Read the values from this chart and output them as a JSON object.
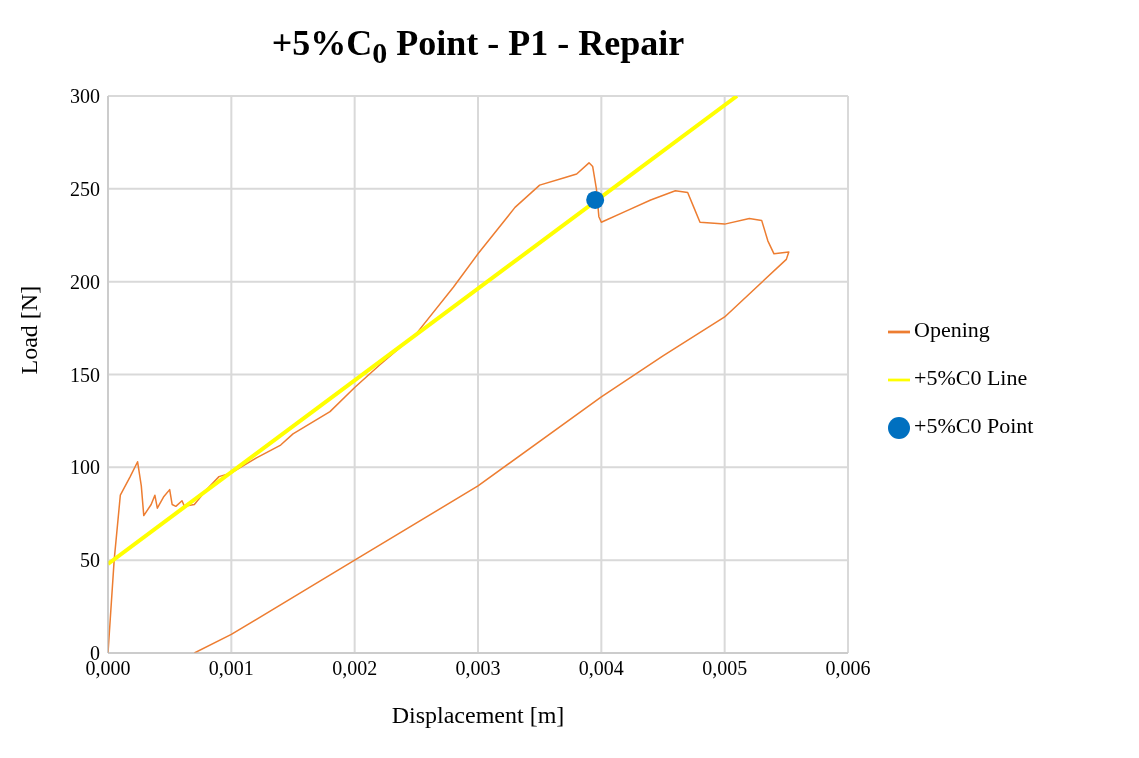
{
  "chart_data": {
    "type": "line",
    "title": "+5%C$_{0}$ Point - P1 - Repair",
    "xlabel": "Displacement [m]",
    "ylabel": "Load [N]",
    "xlim": [
      0,
      0.006
    ],
    "ylim": [
      0,
      300
    ],
    "xticks": [
      {
        "value": 0,
        "label": "0,000"
      },
      {
        "value": 0.001,
        "label": "0,001"
      },
      {
        "value": 0.002,
        "label": "0,002"
      },
      {
        "value": 0.003,
        "label": "0,003"
      },
      {
        "value": 0.004,
        "label": "0,004"
      },
      {
        "value": 0.005,
        "label": "0,005"
      },
      {
        "value": 0.006,
        "label": "0,006"
      }
    ],
    "yticks": [
      0,
      50,
      100,
      150,
      200,
      250,
      300
    ],
    "grid": true,
    "legend": "right",
    "series": [
      {
        "name": "Opening",
        "marker": "none",
        "color": "#ed7d31",
        "x": [
          0,
          5e-05,
          0.0001,
          0.00018,
          0.00024,
          0.00027,
          0.00029,
          0.00035,
          0.00038,
          0.0004,
          0.00045,
          0.0005,
          0.00052,
          0.00055,
          0.0006,
          0.00062,
          0.0007,
          0.0008,
          0.0009,
          0.001,
          0.0012,
          0.0014,
          0.0015,
          0.0018,
          0.002,
          0.0022,
          0.0025,
          0.0028,
          0.003,
          0.0033,
          0.0035,
          0.0037,
          0.0038,
          0.0039,
          0.00393,
          0.00396,
          0.00398,
          0.004,
          0.0042,
          0.0044,
          0.0046,
          0.0047,
          0.00475,
          0.0048,
          0.005,
          0.0052,
          0.0053,
          0.00535,
          0.0054,
          0.00552,
          0.0055,
          0.005,
          0.0045,
          0.004,
          0.003,
          0.002,
          0.001,
          0.0007
        ],
        "values": [
          0,
          50,
          85,
          95,
          103,
          90,
          74,
          80,
          85,
          78,
          84,
          88,
          80,
          79,
          82,
          79,
          80,
          88,
          95,
          97,
          105,
          112,
          118,
          130,
          143,
          155,
          172,
          197,
          215,
          240,
          252,
          256,
          258,
          264,
          262,
          250,
          235,
          232,
          238,
          244,
          249,
          248,
          240,
          232,
          231,
          234,
          233,
          222,
          215,
          216,
          212,
          181,
          160,
          138,
          90,
          50,
          10,
          0
        ]
      },
      {
        "name": "+5%C0 Line",
        "marker": "none",
        "color": "#ffff00",
        "x": [
          0,
          0.0051
        ],
        "values": [
          48,
          300
        ]
      },
      {
        "name": "+5%C0 Point",
        "type": "scatter",
        "marker": "circle",
        "color": "#0070c0",
        "x": [
          0.00395
        ],
        "values": [
          244
        ]
      }
    ]
  }
}
